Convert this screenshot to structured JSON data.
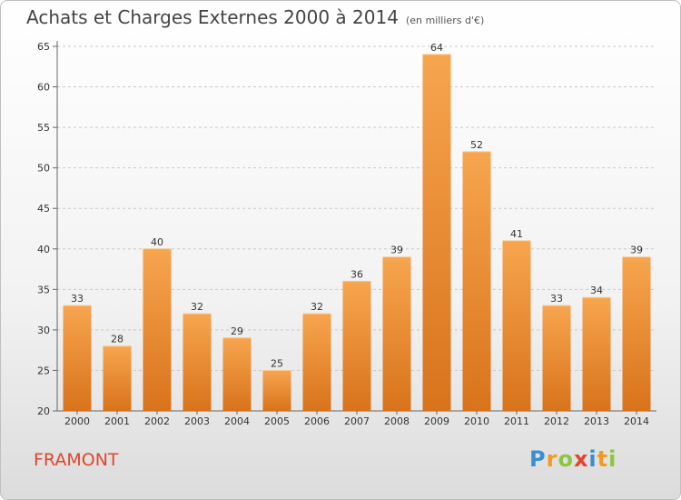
{
  "title": "Achats et Charges Externes 2000 à 2014",
  "unit": "(en milliers d'€)",
  "commune": "FRAMONT",
  "logo": {
    "letters": [
      {
        "ch": "P",
        "color": "#3a8fd0"
      },
      {
        "ch": "r",
        "color": "#f29a1f"
      },
      {
        "ch": "o",
        "color": "#8cc63f"
      },
      {
        "ch": "x",
        "color": "#e8402a"
      },
      {
        "ch": "i",
        "color": "#3a8fd0"
      },
      {
        "ch": "t",
        "color": "#f29a1f"
      },
      {
        "ch": "i",
        "color": "#8cc63f"
      }
    ]
  },
  "colors": {
    "bar_top": "#f7a54f",
    "bar_bottom": "#d8731b",
    "grid": "#c8c8c8"
  },
  "chart_data": {
    "type": "bar",
    "title": "Achats et Charges Externes 2000 à 2014",
    "subtitle": "(en milliers d'€)",
    "xlabel": "",
    "ylabel": "",
    "ylim": [
      20,
      65
    ],
    "yticks": [
      20,
      25,
      30,
      35,
      40,
      45,
      50,
      55,
      60,
      65
    ],
    "grid": "horizontal dashed",
    "categories": [
      "2000",
      "2001",
      "2002",
      "2003",
      "2004",
      "2005",
      "2006",
      "2007",
      "2008",
      "2009",
      "2010",
      "2011",
      "2012",
      "2013",
      "2014"
    ],
    "values": [
      33,
      28,
      40,
      32,
      29,
      25,
      32,
      36,
      39,
      64,
      52,
      41,
      33,
      34,
      39
    ]
  }
}
